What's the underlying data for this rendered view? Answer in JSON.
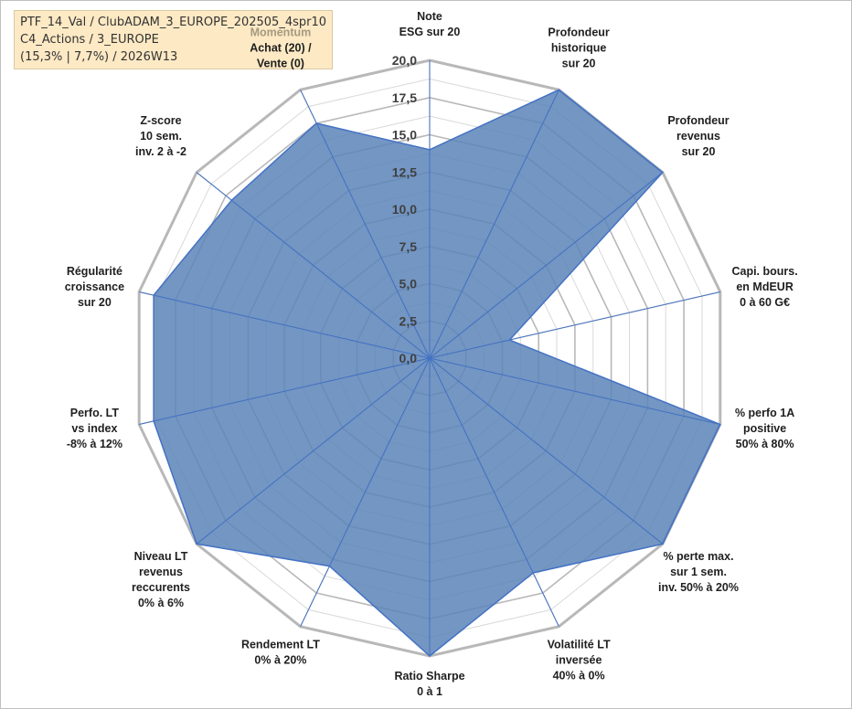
{
  "info": {
    "line1": "PTF_14_Val / ClubADAM_3_EUROPE_202505_4spr10",
    "line2": "C4_Actions / 3_EUROPE",
    "line3": "(15,3% | 7,7%) / 2026W13"
  },
  "colors": {
    "fill": "#5b84b8",
    "stroke": "#4472c4",
    "grid_outer": "#b8b8b8",
    "grid_inner": "#d9d9d9",
    "background": "#ffffff",
    "info_box": "#fde9c4"
  },
  "chart_data": {
    "type": "radar",
    "title": "",
    "rmin": 0,
    "rmax": 20,
    "tick_step": 2.5,
    "tick_labels": [
      "0,0",
      "2,5",
      "5,0",
      "7,5",
      "10,0",
      "12,5",
      "15,0",
      "17,5",
      "20,0"
    ],
    "grid": true,
    "axes": [
      {
        "label": [
          "Note",
          "ESG sur 20"
        ],
        "value": 14.0
      },
      {
        "label": [
          "Profondeur",
          "historique",
          "sur 20"
        ],
        "value": 20.0
      },
      {
        "label": [
          "Profondeur",
          "revenus",
          "sur 20"
        ],
        "value": 20.0
      },
      {
        "label": [
          "Capi. bours.",
          "en MdEUR",
          "0 à 60 G€"
        ],
        "value": 5.5
      },
      {
        "label": [
          "% perfo 1A",
          "positive",
          "50% à 80%"
        ],
        "value": 20.0
      },
      {
        "label": [
          "% perte max.",
          "sur 1 sem.",
          "inv. 50% à 20%"
        ],
        "value": 20.0
      },
      {
        "label": [
          "Volatilité LT",
          "inversée",
          "40% à 0%"
        ],
        "value": 16.0
      },
      {
        "label": [
          "Ratio Sharpe",
          "0 à 1"
        ],
        "value": 20.0
      },
      {
        "label": [
          "Rendement LT",
          "0% à 20%"
        ],
        "value": 15.5
      },
      {
        "label": [
          "Niveau LT",
          "revenus",
          "reccurents",
          "0% à 6%"
        ],
        "value": 20.0
      },
      {
        "label": [
          "Perfo. LT",
          "vs index",
          "-8% à 12%"
        ],
        "value": 19.0
      },
      {
        "label": [
          "Régularité",
          "croissance",
          "sur 20"
        ],
        "value": 19.0
      },
      {
        "label": [
          "Z-score",
          "10 sem.",
          "inv. 2 à -2"
        ],
        "value": 17.0
      },
      {
        "label": [
          "Achat (20) /",
          "Vente (0)"
        ],
        "value": 17.5,
        "heading": "Momentum"
      }
    ]
  }
}
